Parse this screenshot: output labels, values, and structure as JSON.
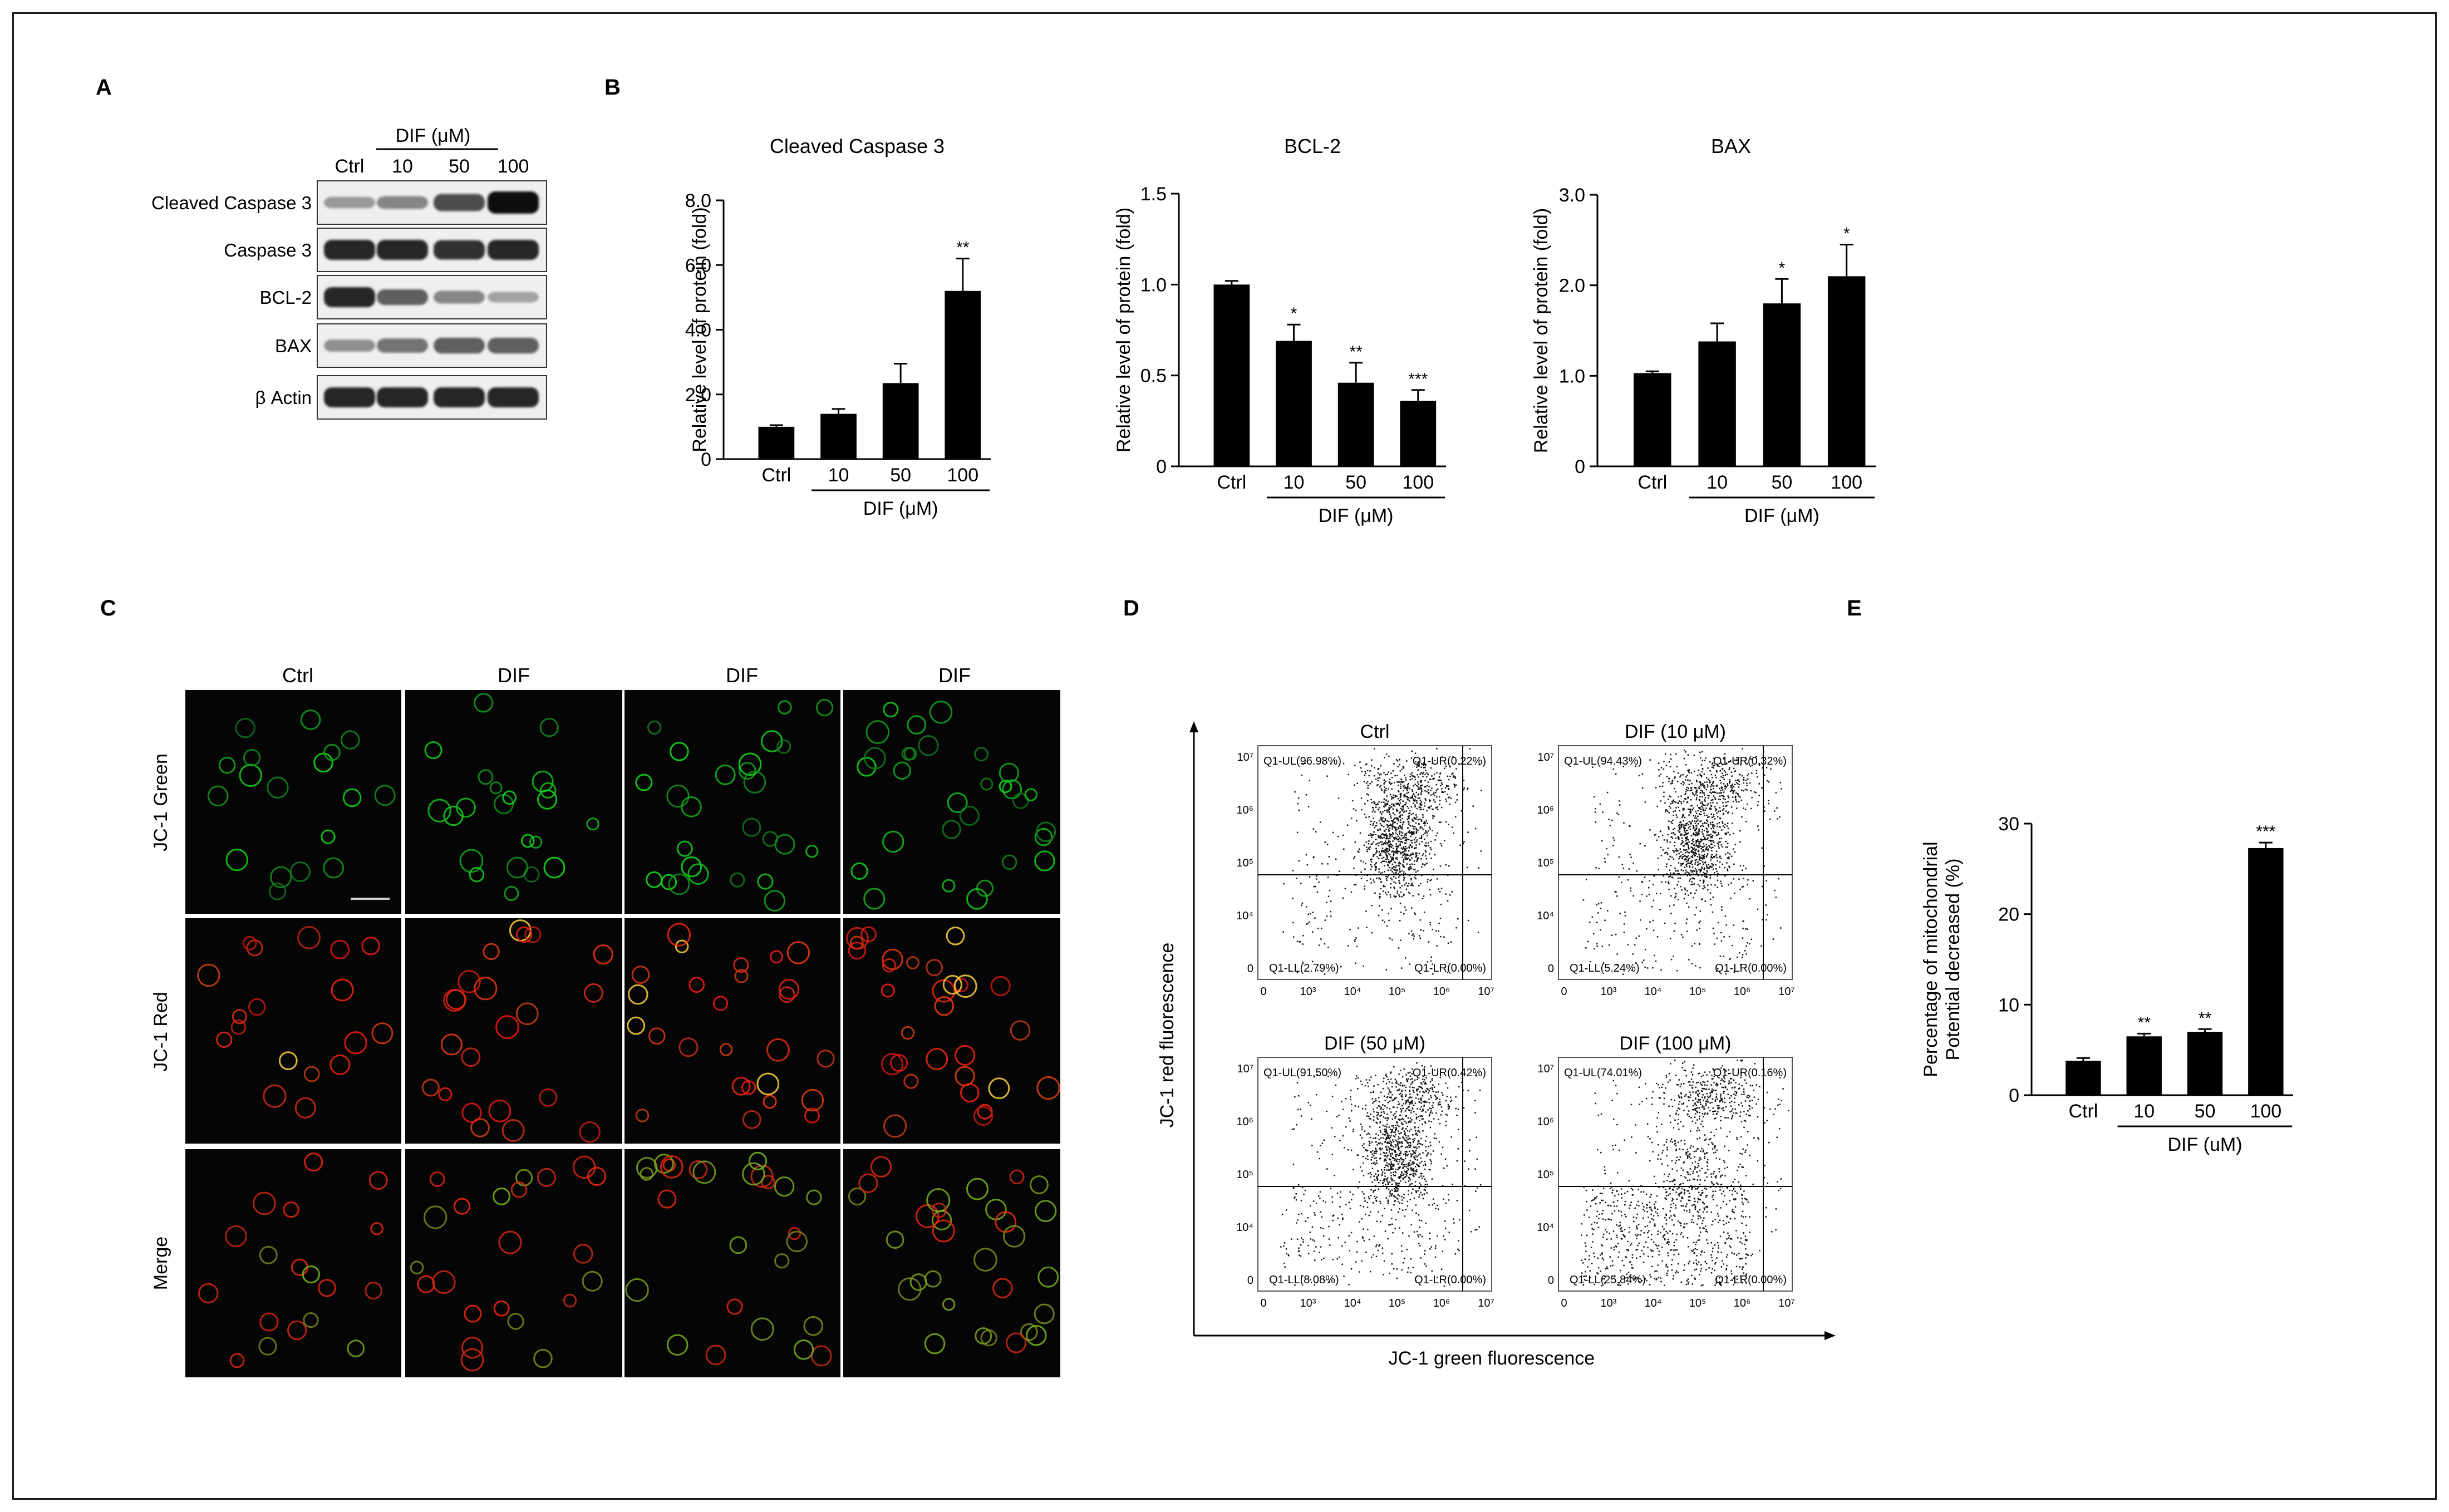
{
  "panels": {
    "a": "A",
    "b": "B",
    "c": "C",
    "d": "D",
    "e": "E"
  },
  "blot": {
    "treatment_label": "DIF (μM)",
    "lanes": [
      "Ctrl",
      "10",
      "50",
      "100"
    ],
    "rows": [
      {
        "label": "Cleaved Caspase 3",
        "intensity": [
          0.25,
          0.35,
          0.65,
          1.0
        ]
      },
      {
        "label": "Caspase 3",
        "intensity": [
          0.85,
          0.85,
          0.8,
          0.85
        ]
      },
      {
        "label": "BCL-2",
        "intensity": [
          0.85,
          0.55,
          0.35,
          0.2
        ]
      },
      {
        "label": "BAX",
        "intensity": [
          0.3,
          0.45,
          0.55,
          0.55
        ]
      },
      {
        "label": "β Actin",
        "intensity": [
          0.85,
          0.85,
          0.85,
          0.85
        ]
      }
    ]
  },
  "chart_data": [
    {
      "type": "bar",
      "title": "Cleaved Caspase  3",
      "ylabel": "Relative level of protein (fold)",
      "xlabel": "DIF (μM)",
      "categories": [
        "Ctrl",
        "10",
        "50",
        "100"
      ],
      "values": [
        1.0,
        1.4,
        2.35,
        5.2
      ],
      "errors": [
        0.05,
        0.15,
        0.6,
        1.0
      ],
      "significance": [
        "",
        "",
        "",
        "**"
      ],
      "ylim": [
        0,
        8
      ],
      "yticks": [
        "0",
        "2.0",
        "4.0",
        "6.0",
        "8.0"
      ],
      "ytick_values": [
        0,
        2,
        4,
        6,
        8
      ]
    },
    {
      "type": "bar",
      "title": "BCL-2",
      "ylabel": "Relative level of protein (fold)",
      "xlabel": "DIF (μM)",
      "categories": [
        "Ctrl",
        "10",
        "50",
        "100"
      ],
      "values": [
        1.0,
        0.69,
        0.46,
        0.36
      ],
      "errors": [
        0.02,
        0.09,
        0.11,
        0.06
      ],
      "significance": [
        "",
        "*",
        "**",
        "***"
      ],
      "ylim": [
        0,
        1.5
      ],
      "yticks": [
        "0",
        "0.5",
        "1.0",
        "1.5"
      ],
      "ytick_values": [
        0,
        0.5,
        1.0,
        1.5
      ]
    },
    {
      "type": "bar",
      "title": "BAX",
      "ylabel": "Relative level of protein (fold)",
      "xlabel": "DIF (μM)",
      "categories": [
        "Ctrl",
        "10",
        "50",
        "100"
      ],
      "values": [
        1.03,
        1.38,
        1.8,
        2.1
      ],
      "errors": [
        0.02,
        0.2,
        0.27,
        0.35
      ],
      "significance": [
        "",
        "",
        "*",
        "*"
      ],
      "ylim": [
        0,
        3
      ],
      "yticks": [
        "0",
        "1.0",
        "2.0",
        "3.0"
      ],
      "ytick_values": [
        0,
        1,
        2,
        3
      ]
    },
    {
      "type": "bar",
      "title": "",
      "ylabel": "Percentage of mitochondrial\nPotential decreased (%)",
      "xlabel": "DIF (uM)",
      "categories": [
        "Ctrl",
        "10",
        "50",
        "100"
      ],
      "values": [
        3.8,
        6.5,
        7.0,
        27.3
      ],
      "errors": [
        0.3,
        0.3,
        0.3,
        0.6
      ],
      "significance": [
        "",
        "**",
        "**",
        "***"
      ],
      "ylim": [
        0,
        30
      ],
      "yticks": [
        "0",
        "10",
        "20",
        "30"
      ],
      "ytick_values": [
        0,
        10,
        20,
        30
      ]
    }
  ],
  "microscopy": {
    "columns": [
      "Ctrl",
      "DIF",
      "DIF",
      "DIF"
    ],
    "rows": [
      "JC-1 Green",
      "JC-1 Red",
      "Merge"
    ]
  },
  "flow": {
    "xlabel": "JC-1 green fluorescence",
    "ylabel": "JC-1 red fluorescence",
    "x_ticks": [
      "0",
      "10³",
      "10⁴",
      "10⁵",
      "10⁶",
      "10⁷"
    ],
    "y_ticks": [
      "0",
      "10⁴",
      "10⁵",
      "10⁶",
      "10⁷"
    ],
    "plots": [
      {
        "title": "Ctrl",
        "ul": "Q1-UL(96.98%)",
        "ur": "Q1-UR(0.22%)",
        "ll": "Q1-LL(2.79%)",
        "lr": "Q1-LR(0.00%)"
      },
      {
        "title": "DIF (10 μM)",
        "ul": "Q1-UL(94.43%)",
        "ur": "Q1-UR(0.32%)",
        "ll": "Q1-LL(5.24%)",
        "lr": "Q1-LR(0.00%)"
      },
      {
        "title": "DIF (50 μM)",
        "ul": "Q1-UL(91.50%)",
        "ur": "Q1-UR(0.42%)",
        "ll": "Q1-LL(8.08%)",
        "lr": "Q1-LR(0.00%)"
      },
      {
        "title": "DIF (100 μM)",
        "ul": "Q1-UL(74.01%)",
        "ur": "Q1-UR(0.16%)",
        "ll": "Q1-LL(25.84%)",
        "lr": "Q1-LR(0.00%)"
      }
    ]
  }
}
